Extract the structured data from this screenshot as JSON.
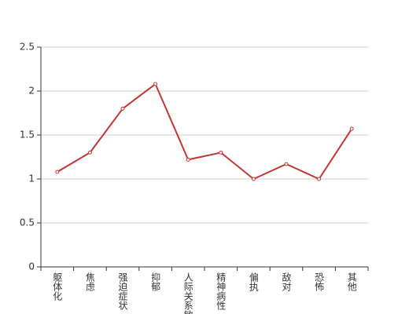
{
  "chart_data": {
    "type": "line",
    "categories": [
      "躯体化",
      "焦虑",
      "强迫症状",
      "抑郁",
      "人际关系敏感",
      "精神病性",
      "偏执",
      "敌对",
      "恐怖",
      "其他"
    ],
    "values": [
      1.08,
      1.3,
      1.8,
      2.08,
      1.22,
      1.3,
      1.0,
      1.17,
      1.0,
      1.57
    ],
    "color": "#c23531",
    "ylim": [
      0,
      2.5
    ],
    "yticks": [
      0,
      0.5,
      1,
      1.5,
      2,
      2.5
    ],
    "grid": true
  }
}
